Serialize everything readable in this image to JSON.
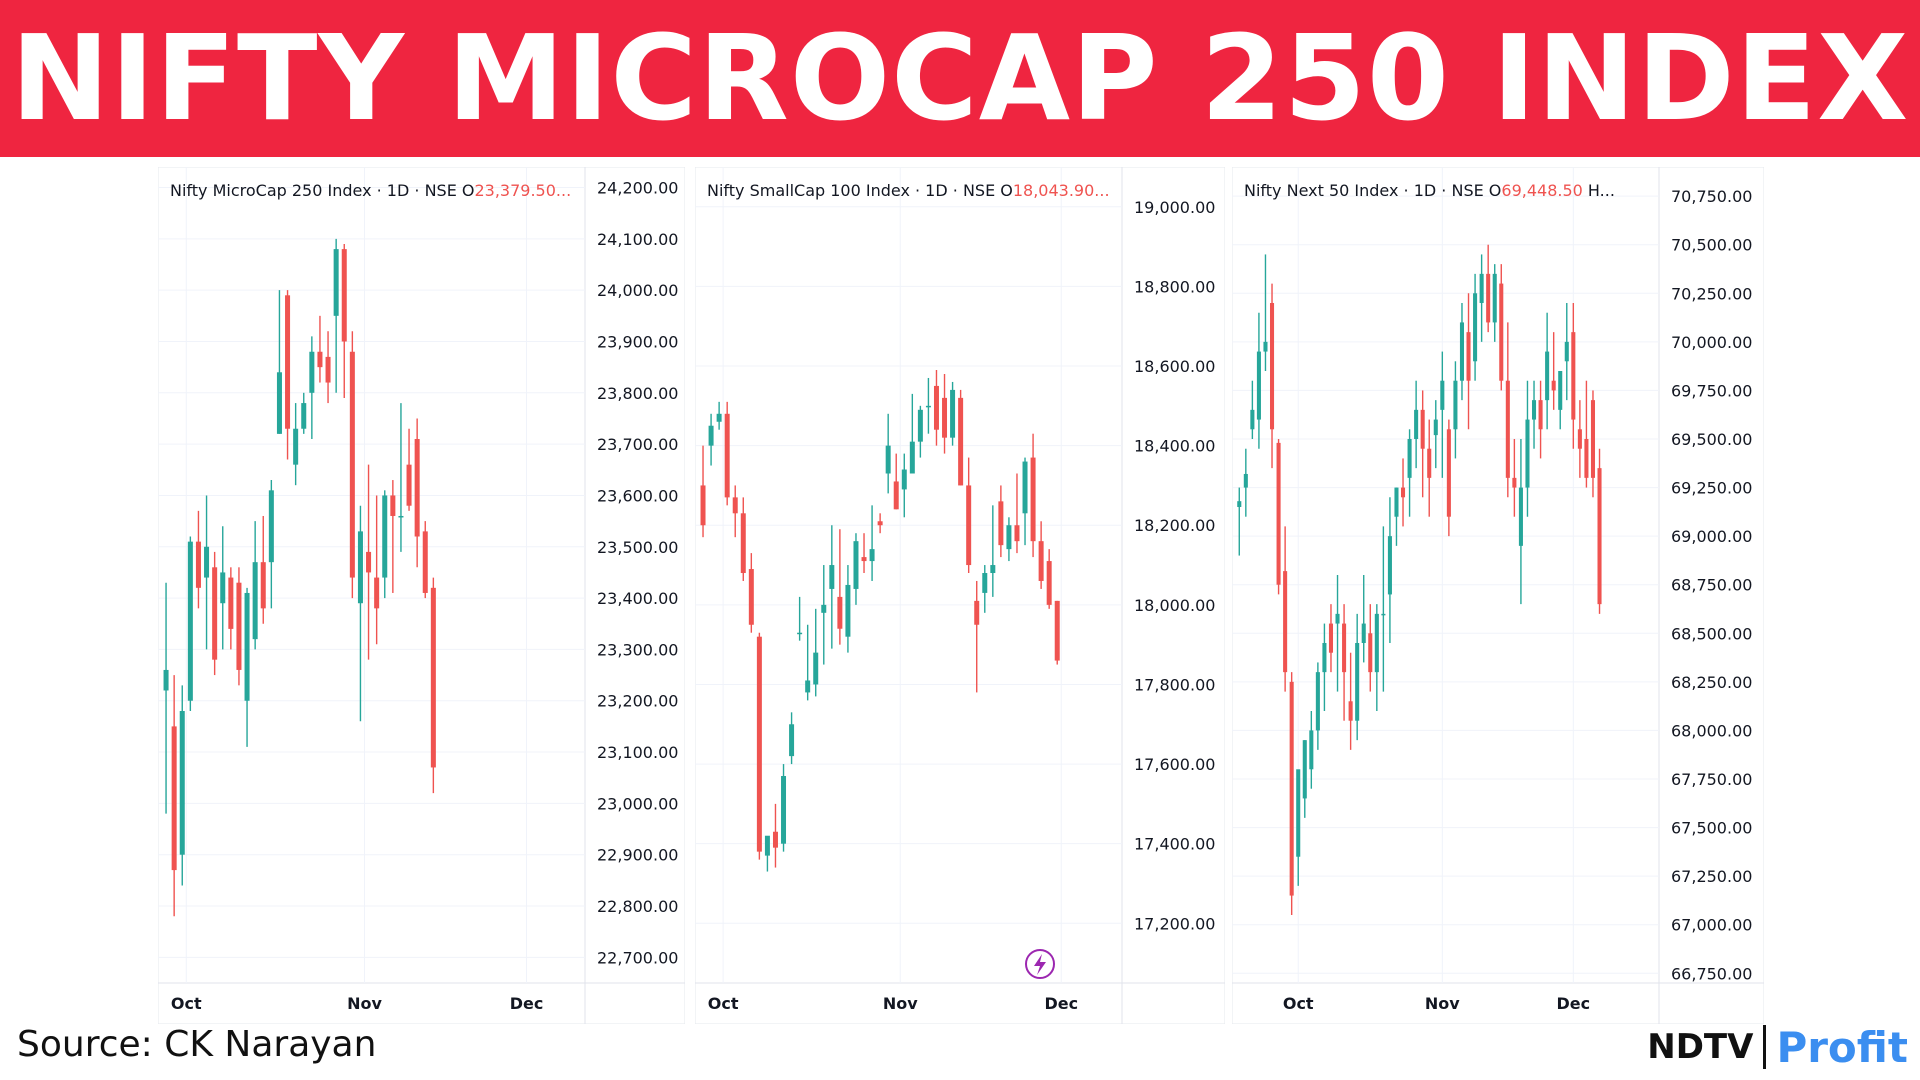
{
  "banner": {
    "title": "NIFTY MICROCAP 250 INDEX",
    "background": "#ef2540"
  },
  "source_text": "Source: CK Narayan",
  "logo": {
    "ndtv": "NDTV",
    "profit": "Profit"
  },
  "colors": {
    "up": "#26a69a",
    "down": "#ef5350",
    "grid": "#f0f3fa"
  },
  "chart_data": [
    {
      "type": "candlestick",
      "legend": {
        "name": "Nifty MicroCap 250 Index",
        "meta": " · 1D · NSE  ",
        "o_label": "O",
        "o_value": "23,379.50..."
      },
      "ylim": [
        22650,
        24240
      ],
      "y_ticks": [
        "24,200.00",
        "24,100.00",
        "24,000.00",
        "23,900.00",
        "23,800.00",
        "23,700.00",
        "23,600.00",
        "23,500.00",
        "23,400.00",
        "23,300.00",
        "23,200.00",
        "23,100.00",
        "23,000.00",
        "22,900.00",
        "22,800.00",
        "22,700.00"
      ],
      "y_tick_values": [
        24200,
        24100,
        24000,
        23900,
        23800,
        23700,
        23600,
        23500,
        23400,
        23300,
        23200,
        23100,
        23000,
        22900,
        22800,
        22700
      ],
      "x_ticks": [
        "Oct",
        "Nov",
        "Dec"
      ],
      "x_tick_index": [
        2.5,
        24.5,
        44.5
      ],
      "candles": [
        [
          23220,
          23430,
          23260,
          22980
        ],
        [
          23150,
          23250,
          22870,
          22780
        ],
        [
          22900,
          23230,
          23180,
          22840
        ],
        [
          23200,
          23520,
          23510,
          23180
        ],
        [
          23510,
          23570,
          23420,
          23380
        ],
        [
          23440,
          23600,
          23500,
          23300
        ],
        [
          23460,
          23490,
          23280,
          23250
        ],
        [
          23390,
          23540,
          23450,
          23300
        ],
        [
          23440,
          23460,
          23340,
          23300
        ],
        [
          23430,
          23460,
          23260,
          23230
        ],
        [
          23200,
          23420,
          23410,
          23110
        ],
        [
          23320,
          23550,
          23470,
          23300
        ],
        [
          23470,
          23560,
          23380,
          23350
        ],
        [
          23470,
          23630,
          23610,
          23380
        ],
        [
          23720,
          24000,
          23840,
          23720
        ],
        [
          23990,
          24000,
          23730,
          23670
        ],
        [
          23660,
          23780,
          23730,
          23620
        ],
        [
          23730,
          23800,
          23780,
          23720
        ],
        [
          23800,
          23910,
          23880,
          23710
        ],
        [
          23880,
          23950,
          23850,
          23820
        ],
        [
          23870,
          23920,
          23820,
          23780
        ],
        [
          23950,
          24100,
          24080,
          23800
        ],
        [
          24080,
          24090,
          23900,
          23790
        ],
        [
          23880,
          23920,
          23440,
          23400
        ],
        [
          23390,
          23580,
          23530,
          23160
        ],
        [
          23490,
          23660,
          23450,
          23280
        ],
        [
          23440,
          23600,
          23380,
          23310
        ],
        [
          23440,
          23610,
          23600,
          23400
        ],
        [
          23600,
          23630,
          23560,
          23410
        ],
        [
          23560,
          23780,
          23560,
          23490
        ],
        [
          23660,
          23730,
          23580,
          23570
        ],
        [
          23710,
          23750,
          23520,
          23460
        ],
        [
          23530,
          23550,
          23410,
          23400
        ],
        [
          23420,
          23440,
          23070,
          23020
        ]
      ]
    },
    {
      "type": "candlestick",
      "legend": {
        "name": "Nifty SmallCap 100 Index",
        "meta": " · 1D · NSE  ",
        "o_label": "O",
        "o_value": "18,043.90..."
      },
      "ylim": [
        17050,
        19100
      ],
      "y_ticks": [
        "19,000.00",
        "18,800.00",
        "18,600.00",
        "18,400.00",
        "18,200.00",
        "18,000.00",
        "17,800.00",
        "17,600.00",
        "17,400.00",
        "17,200.00"
      ],
      "y_tick_values": [
        19000,
        18800,
        18600,
        18400,
        18200,
        18000,
        17800,
        17600,
        17400,
        17200
      ],
      "x_ticks": [
        "Oct",
        "Nov",
        "Dec"
      ],
      "x_tick_index": [
        2.5,
        24.5,
        44.5
      ],
      "candles": [
        [
          18300,
          18400,
          18200,
          18170
        ],
        [
          18400,
          18480,
          18450,
          18350
        ],
        [
          18460,
          18510,
          18480,
          18440
        ],
        [
          18480,
          18510,
          18270,
          18250
        ],
        [
          18270,
          18300,
          18230,
          18170
        ],
        [
          18230,
          18270,
          18080,
          18060
        ],
        [
          18090,
          18130,
          17950,
          17930
        ],
        [
          17920,
          17930,
          17380,
          17360
        ],
        [
          17370,
          17410,
          17420,
          17330
        ],
        [
          17430,
          17500,
          17390,
          17340
        ],
        [
          17400,
          17600,
          17570,
          17380
        ],
        [
          17620,
          17730,
          17700,
          17600
        ],
        [
          17930,
          18020,
          17930,
          17910
        ],
        [
          17780,
          17950,
          17810,
          17760
        ],
        [
          17800,
          17990,
          17880,
          17770
        ],
        [
          17980,
          18100,
          18000,
          17850
        ],
        [
          18040,
          18200,
          18100,
          17890
        ],
        [
          18020,
          18190,
          17940,
          17900
        ],
        [
          17920,
          18100,
          18050,
          17880
        ],
        [
          18040,
          18180,
          18160,
          18000
        ],
        [
          18120,
          18180,
          18110,
          18080
        ],
        [
          18110,
          18250,
          18140,
          18060
        ],
        [
          18210,
          18230,
          18200,
          18180
        ],
        [
          18330,
          18480,
          18400,
          18280
        ],
        [
          18310,
          18380,
          18240,
          18240
        ],
        [
          18290,
          18380,
          18340,
          18220
        ],
        [
          18330,
          18530,
          18410,
          18330
        ],
        [
          18410,
          18500,
          18490,
          18370
        ],
        [
          18500,
          18570,
          18500,
          18430
        ],
        [
          18550,
          18590,
          18440,
          18400
        ],
        [
          18520,
          18580,
          18420,
          18380
        ],
        [
          18420,
          18560,
          18540,
          18400
        ],
        [
          18520,
          18540,
          18300,
          18300
        ],
        [
          18300,
          18370,
          18100,
          18080
        ],
        [
          18010,
          18060,
          17950,
          17780
        ],
        [
          18030,
          18100,
          18080,
          17980
        ],
        [
          18080,
          18250,
          18100,
          18020
        ],
        [
          18260,
          18300,
          18150,
          18120
        ],
        [
          18140,
          18220,
          18200,
          18110
        ],
        [
          18200,
          18330,
          18160,
          18130
        ],
        [
          18230,
          18370,
          18360,
          18150
        ],
        [
          18370,
          18430,
          18160,
          18120
        ],
        [
          18160,
          18210,
          18060,
          18040
        ],
        [
          18110,
          18140,
          18000,
          17990
        ],
        [
          18010,
          18010,
          17860,
          17850
        ]
      ]
    },
    {
      "type": "candlestick",
      "legend": {
        "name": "Nifty Next 50 Index",
        "meta": " · 1D · NSE  ",
        "o_label": "O",
        "o_value": "69,448.50",
        "h_label": "H..."
      },
      "ylim": [
        66700,
        70900
      ],
      "y_ticks": [
        "70,750.00",
        "70,500.00",
        "70,250.00",
        "70,000.00",
        "69,750.00",
        "69,500.00",
        "69,250.00",
        "69,000.00",
        "68,750.00",
        "68,500.00",
        "68,250.00",
        "68,000.00",
        "67,750.00",
        "67,500.00",
        "67,250.00",
        "67,000.00",
        "66,750.00"
      ],
      "y_tick_values": [
        70750,
        70500,
        70250,
        70000,
        69750,
        69500,
        69250,
        69000,
        68750,
        68500,
        68250,
        68000,
        67750,
        67500,
        67250,
        67000,
        66750
      ],
      "x_ticks": [
        "Oct",
        "Nov",
        "Dec"
      ],
      "x_tick_index": [
        9,
        31,
        51
      ],
      "candles": [
        [
          69150,
          69250,
          69180,
          68900
        ],
        [
          69250,
          69450,
          69320,
          69100
        ],
        [
          69550,
          69800,
          69650,
          69500
        ],
        [
          69600,
          70150,
          69950,
          69450
        ],
        [
          69950,
          70450,
          70000,
          69850
        ],
        [
          70200,
          70300,
          69550,
          69350
        ],
        [
          69480,
          69500,
          68750,
          68700
        ],
        [
          68820,
          69050,
          68300,
          68200
        ],
        [
          68250,
          68300,
          67150,
          67050
        ],
        [
          67350,
          67600,
          67800,
          67200
        ],
        [
          67650,
          67950,
          67950,
          67550
        ],
        [
          67800,
          68100,
          68000,
          67700
        ],
        [
          68000,
          68350,
          68300,
          67900
        ],
        [
          68300,
          68550,
          68450,
          68100
        ],
        [
          68550,
          68650,
          68400,
          68300
        ],
        [
          68550,
          68800,
          68600,
          68200
        ],
        [
          68550,
          68650,
          68300,
          68050
        ],
        [
          68150,
          68400,
          68050,
          67900
        ],
        [
          68050,
          68600,
          68450,
          67950
        ],
        [
          68450,
          68800,
          68550,
          68350
        ],
        [
          68500,
          68650,
          68300,
          68200
        ],
        [
          68300,
          68650,
          68600,
          68100
        ],
        [
          68600,
          69050,
          68600,
          68200
        ],
        [
          68700,
          69200,
          69000,
          68450
        ],
        [
          69100,
          69250,
          69250,
          68950
        ],
        [
          69250,
          69400,
          69200,
          69050
        ],
        [
          69300,
          69550,
          69500,
          69100
        ],
        [
          69500,
          69800,
          69650,
          69350
        ],
        [
          69650,
          69750,
          69450,
          69200
        ],
        [
          69450,
          69600,
          69300,
          69100
        ],
        [
          69520,
          69700,
          69600,
          69350
        ],
        [
          69650,
          69950,
          69800,
          69300
        ],
        [
          69550,
          69600,
          69100,
          69000
        ],
        [
          69550,
          69900,
          69800,
          69400
        ],
        [
          69800,
          70200,
          70100,
          69700
        ],
        [
          70050,
          70250,
          69800,
          69550
        ],
        [
          69900,
          70350,
          70250,
          69800
        ],
        [
          70200,
          70450,
          70350,
          70000
        ],
        [
          70350,
          70500,
          70100,
          70050
        ],
        [
          70100,
          70400,
          70350,
          70000
        ],
        [
          70300,
          70400,
          69800,
          69750
        ],
        [
          69800,
          70100,
          69300,
          69200
        ],
        [
          69300,
          69500,
          69250,
          69100
        ],
        [
          68950,
          69500,
          69250,
          68650
        ],
        [
          69250,
          69800,
          69600,
          69100
        ],
        [
          69600,
          69800,
          69700,
          69450
        ],
        [
          69700,
          69800,
          69550,
          69400
        ],
        [
          69700,
          70150,
          69950,
          69550
        ],
        [
          69800,
          70050,
          69750,
          69650
        ],
        [
          69650,
          69800,
          69850,
          69550
        ],
        [
          69900,
          70200,
          70000,
          69700
        ],
        [
          70050,
          70200,
          69600,
          69450
        ],
        [
          69550,
          69700,
          69450,
          69300
        ],
        [
          69500,
          69800,
          69300,
          69250
        ],
        [
          69700,
          69750,
          69300,
          69200
        ],
        [
          69350,
          69450,
          68650,
          68600
        ]
      ]
    }
  ]
}
